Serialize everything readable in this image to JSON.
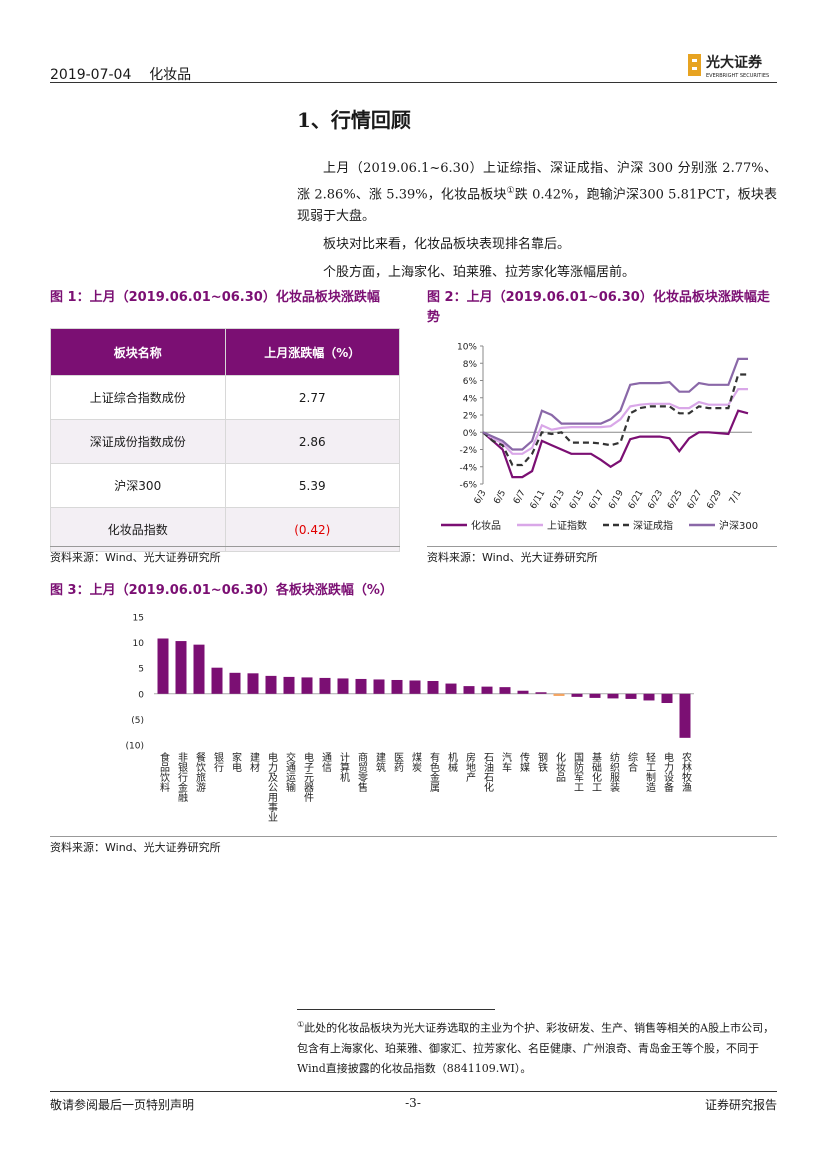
{
  "header": {
    "date": "2019-07-04",
    "category": "化妆品",
    "logo": "光大证券",
    "logo_en": "EVERBRIGHT SECURITIES"
  },
  "section_title": "1、行情回顾",
  "paragraphs": [
    [
      "上月（2019.06.1~6.30）上证综指、深证成指、沪深 300 分别涨 2.77%、涨 2.86%、涨 5.39%，化妆品板块",
      "①",
      "跌 0.42%，跑输沪深300 5.81PCT，板块表现弱于大盘。"
    ],
    [
      "板块对比来看，化妆品板块表现排名靠后。"
    ],
    [
      "个股方面，上海家化、珀莱雅、拉芳家化等涨幅居前。"
    ]
  ],
  "table": {
    "title": "图 1：上月（2019.06.01~06.30）化妆品板块涨跌幅",
    "header": [
      "板块名称",
      "上月涨跌幅（%）"
    ],
    "rows": [
      [
        "上证综合指数成份",
        "2.77"
      ],
      [
        "深证成份指数成份",
        "2.86"
      ],
      [
        "沪深300",
        "5.39"
      ],
      [
        "化妆品指数",
        "(0.42)"
      ]
    ],
    "source": "资料来源：Wind、光大证券研究所"
  },
  "chart_data": [
    {
      "type": "line",
      "title": "图 2：上月（2019.06.01~06.30）化妆品板块涨跌幅走势",
      "source": "资料来源：Wind、光大证券研究所",
      "categories": [
        "6/3",
        null,
        "6/5",
        null,
        "6/7",
        null,
        "6/11",
        null,
        "6/13",
        null,
        "6/15",
        null,
        "6/17",
        null,
        "6/19",
        null,
        "6/21",
        null,
        "6/23",
        null,
        "6/25",
        null,
        "6/27",
        null,
        "6/29",
        null,
        "7/1",
        null
      ],
      "series": [
        {
          "name": "化妆品",
          "color": "#7b0f73",
          "dashed": false,
          "values": [
            0,
            -1,
            -2,
            -5.2,
            -5.2,
            -4.5,
            -1,
            -1.5,
            -2,
            -2.5,
            -2.5,
            -2.5,
            -3.2,
            -4,
            -3.3,
            -0.8,
            -0.5,
            -0.5,
            -0.5,
            -0.7,
            -2.2,
            -0.7,
            0,
            0,
            -0.1,
            -0.2,
            2.5,
            2.2
          ]
        },
        {
          "name": "上证指数",
          "color": "#d9a7e8",
          "dashed": false,
          "values": [
            0,
            -0.7,
            -1.3,
            -2.5,
            -2.5,
            -1.8,
            0.8,
            0.3,
            0.5,
            0.6,
            0.6,
            0.6,
            0.6,
            0.7,
            1.5,
            3,
            3.2,
            3.3,
            3.3,
            3.3,
            2.8,
            2.8,
            3.5,
            3.2,
            3.2,
            3.2,
            5,
            5
          ]
        },
        {
          "name": "深证成指",
          "color": "#333333",
          "dashed": true,
          "values": [
            0,
            -1,
            -1.5,
            -3.8,
            -3.8,
            -2.5,
            0,
            -0.2,
            0,
            -1.2,
            -1.2,
            -1.2,
            -1.3,
            -1.5,
            -1.2,
            2.2,
            2.8,
            3,
            3,
            3,
            2.2,
            2.2,
            3,
            2.8,
            2.8,
            2.8,
            6.7,
            6.7
          ]
        },
        {
          "name": "沪深300",
          "color": "#8a68a8",
          "dashed": false,
          "values": [
            0,
            -0.5,
            -1,
            -2,
            -2,
            -1,
            2.5,
            2,
            1,
            1,
            1,
            1,
            1,
            1.5,
            2.5,
            5.5,
            5.7,
            5.7,
            5.7,
            5.8,
            4.7,
            4.7,
            5.7,
            5.5,
            5.5,
            5.5,
            8.5,
            8.5
          ]
        }
      ],
      "ylim": [
        -6,
        10
      ],
      "yticks": [
        {
          "value": 10,
          "label": "10%"
        },
        {
          "value": 8,
          "label": "8%"
        },
        {
          "value": 6,
          "label": "6%"
        },
        {
          "value": 4,
          "label": "4%"
        },
        {
          "value": 2,
          "label": "2%"
        },
        {
          "value": 0,
          "label": "0%"
        },
        {
          "value": -2,
          "label": "-2%"
        },
        {
          "value": -4,
          "label": "-4%"
        },
        {
          "value": -6,
          "label": "-6%"
        }
      ],
      "legend": "bottom"
    },
    {
      "type": "bar",
      "title": "图 3：上月（2019.06.01~06.30）各板块涨跌幅（%）",
      "source": "资料来源：Wind、光大证券研究所",
      "categories": [
        "食品饮料",
        "非银行金融",
        "餐饮旅游",
        "银行",
        "家电",
        "建材",
        "电力及公用事业",
        "交通运输",
        "电子元器件",
        "通信",
        "计算机",
        "商贸零售",
        "建筑",
        "医药",
        "煤炭",
        "有色金属",
        "机械",
        "房地产",
        "石油石化",
        "汽车",
        "传媒",
        "钢铁",
        "化妆品",
        "国防军工",
        "基础化工",
        "纺织服装",
        "综合",
        "轻工制造",
        "电力设备",
        "农林牧渔"
      ],
      "values": [
        10.8,
        10.3,
        9.6,
        5.1,
        4.1,
        4.0,
        3.5,
        3.3,
        3.2,
        3.1,
        3.0,
        2.9,
        2.8,
        2.7,
        2.6,
        2.5,
        2.0,
        1.5,
        1.4,
        1.3,
        0.6,
        0.3,
        -0.42,
        -0.6,
        -0.8,
        -0.9,
        -1.0,
        -1.3,
        -1.8,
        -8.6
      ],
      "colors": [
        "#7b0f73",
        "#7b0f73",
        "#7b0f73",
        "#7b0f73",
        "#7b0f73",
        "#7b0f73",
        "#7b0f73",
        "#7b0f73",
        "#7b0f73",
        "#7b0f73",
        "#7b0f73",
        "#7b0f73",
        "#7b0f73",
        "#7b0f73",
        "#7b0f73",
        "#7b0f73",
        "#7b0f73",
        "#7b0f73",
        "#7b0f73",
        "#7b0f73",
        "#7b0f73",
        "#7b0f73",
        "#f4a460",
        "#7b0f73",
        "#7b0f73",
        "#7b0f73",
        "#7b0f73",
        "#7b0f73",
        "#7b0f73",
        "#7b0f73"
      ],
      "ylim": [
        -10,
        15
      ],
      "yticks": [
        15,
        10,
        5,
        0,
        {
          "value": -5,
          "label": "(5)"
        },
        {
          "value": -10,
          "label": "(10)"
        }
      ]
    }
  ],
  "footnote": {
    "marker": "①",
    "text": "此处的化妆品板块为光大证券选取的主业为个护、彩妆研发、生产、销售等相关的A股上市公司，包含有上海家化、珀莱雅、御家汇、拉芳家化、名臣健康、广州浪奇、青岛金王等个股，不同于Wind直接披露的化妆品指数（8841109.WI）。"
  },
  "footer": {
    "left": "敬请参阅最后一页特别声明",
    "page": "-3-",
    "right": "证券研究报告"
  }
}
